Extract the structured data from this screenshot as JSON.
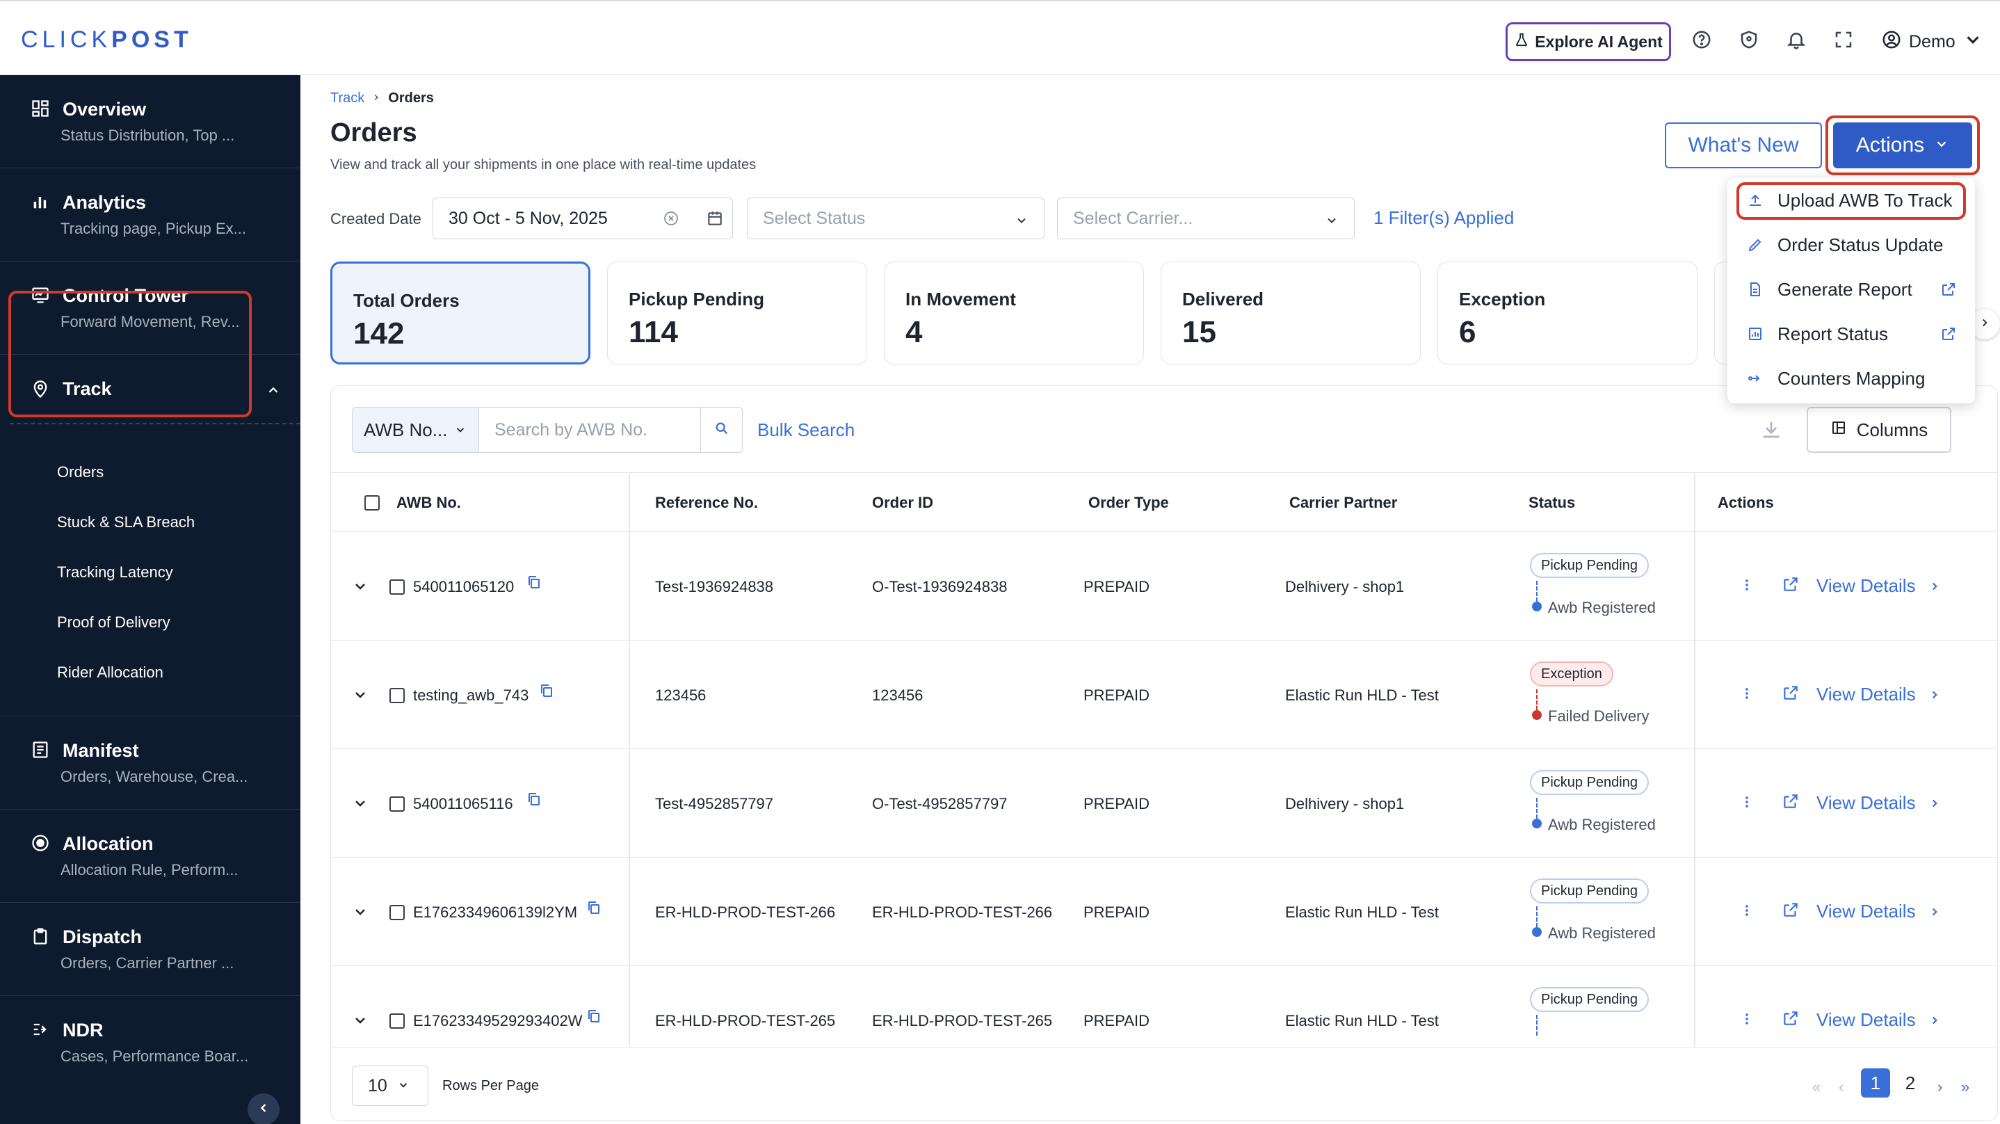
{
  "brand": {
    "logo_light": "CLICK",
    "logo_bold": "POST"
  },
  "topbar": {
    "ai_agent_label": "Explore AI Agent",
    "user_name": "Demo"
  },
  "sidebar": {
    "items": [
      {
        "title": "Overview",
        "subtitle": "Status Distribution, Top ...",
        "icon": "grid-icon"
      },
      {
        "title": "Analytics",
        "subtitle": "Tracking page, Pickup Ex...",
        "icon": "bar-chart-icon"
      },
      {
        "title": "Control Tower",
        "subtitle": "Forward Movement, Rev...",
        "icon": "monitor-icon"
      }
    ],
    "track": {
      "title": "Track",
      "sub_items": [
        "Orders",
        "Stuck & SLA Breach",
        "Tracking Latency",
        "Proof of Delivery",
        "Rider Allocation"
      ]
    },
    "items_after": [
      {
        "title": "Manifest",
        "subtitle": "Orders, Warehouse, Crea...",
        "icon": "list-icon"
      },
      {
        "title": "Allocation",
        "subtitle": "Allocation Rule, Perform...",
        "icon": "target-icon"
      },
      {
        "title": "Dispatch",
        "subtitle": "Orders, Carrier Partner ...",
        "icon": "clipboard-icon"
      },
      {
        "title": "NDR",
        "subtitle": "Cases, Performance Boar...",
        "icon": "ndr-icon"
      }
    ]
  },
  "page": {
    "breadcrumb": {
      "parent": "Track",
      "current": "Orders"
    },
    "title": "Orders",
    "subtitle": "View and track all your shipments in one place with real-time updates",
    "whats_new": "What's New",
    "actions": "Actions"
  },
  "filters": {
    "created_date_label": "Created Date",
    "date_range": "30 Oct - 5 Nov, 2025",
    "status_placeholder": "Select Status",
    "carrier_placeholder": "Select Carrier...",
    "applied": "1 Filter(s) Applied"
  },
  "stats": [
    {
      "label": "Total Orders",
      "value": "142"
    },
    {
      "label": "Pickup Pending",
      "value": "114"
    },
    {
      "label": "In Movement",
      "value": "4"
    },
    {
      "label": "Delivered",
      "value": "15"
    },
    {
      "label": "Exception",
      "value": "6"
    }
  ],
  "search": {
    "type": "AWB No...",
    "placeholder": "Search by AWB No.",
    "bulk": "Bulk Search",
    "columns": "Columns"
  },
  "table": {
    "headers": [
      "AWB No.",
      "Reference No.",
      "Order ID",
      "Order Type",
      "Carrier Partner",
      "Status",
      "Actions"
    ],
    "view_details": "View Details",
    "rows": [
      {
        "awb": "540011065120",
        "ref": "Test-1936924838",
        "order_id": "O-Test-1936924838",
        "type": "PREPAID",
        "carrier": "Delhivery - shop1",
        "status": "Pickup Pending",
        "sub_status": "Awb Registered",
        "kind": "pending"
      },
      {
        "awb": "testing_awb_743",
        "ref": "123456",
        "order_id": "123456",
        "type": "PREPAID",
        "carrier": "Elastic Run HLD - Test",
        "status": "Exception",
        "sub_status": "Failed Delivery",
        "kind": "exception"
      },
      {
        "awb": "540011065116",
        "ref": "Test-4952857797",
        "order_id": "O-Test-4952857797",
        "type": "PREPAID",
        "carrier": "Delhivery - shop1",
        "status": "Pickup Pending",
        "sub_status": "Awb Registered",
        "kind": "pending"
      },
      {
        "awb": "E17623349606139l2YM",
        "ref": "ER-HLD-PROD-TEST-266",
        "order_id": "ER-HLD-PROD-TEST-266",
        "type": "PREPAID",
        "carrier": "Elastic Run HLD - Test",
        "status": "Pickup Pending",
        "sub_status": "Awb Registered",
        "kind": "pending"
      },
      {
        "awb": "E17623349529293402W",
        "ref": "ER-HLD-PROD-TEST-265",
        "order_id": "ER-HLD-PROD-TEST-265",
        "type": "PREPAID",
        "carrier": "Elastic Run HLD - Test",
        "status": "Pickup Pending",
        "sub_status": "",
        "kind": "pending"
      }
    ]
  },
  "pager": {
    "rows_value": "10",
    "rows_label": "Rows Per Page",
    "pages": [
      "1",
      "2"
    ],
    "current_page": "1"
  },
  "dropdown": {
    "items": [
      {
        "label": "Upload AWB To Track",
        "icon": "upload-icon"
      },
      {
        "label": "Order Status Update",
        "icon": "pencil-icon"
      },
      {
        "label": "Generate Report",
        "icon": "document-icon"
      },
      {
        "label": "Report Status",
        "icon": "report-icon"
      },
      {
        "label": "Counters Mapping",
        "icon": "mapping-icon"
      }
    ]
  },
  "colors": {
    "brand": "#2f5bc7",
    "sidebar_bg": "#0e1b2e",
    "highlight": "#d13a2b",
    "link": "#3a6fd8"
  }
}
